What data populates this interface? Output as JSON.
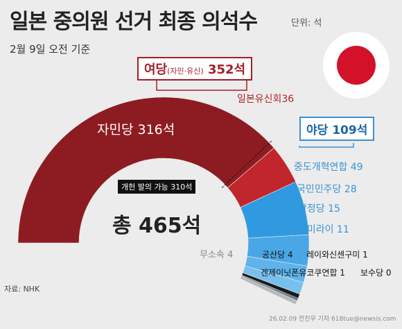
{
  "title": "일본 중의원 선거 최종 의석수",
  "unit": "단위: 석",
  "subtitle": "2월 9일 오전 기준",
  "source": "자료: NHK",
  "footer": "26.02.09 전진우 기자 618tue@newsis.com",
  "ruling_bloc": {
    "label": "여당",
    "members": "(자민·유신)",
    "seats": "352석"
  },
  "opposition_bloc": {
    "label": "야당",
    "seats": "109석"
  },
  "threshold_label": "개헌 발의 가능 310석",
  "total_label": "총 465석",
  "colors": {
    "ldp": "#8d1c22",
    "ishin": "#c2262d",
    "cdp": "#2f9adf",
    "dpfp": "#4aa7e5",
    "sanseito": "#5fb3ea",
    "mirai": "#77c0ee",
    "jcp": "#1a1a1a",
    "minor": "#1c3c6a",
    "genzei": "#0d2244",
    "sanshu": "#2b2b2b",
    "genzei_hoshu": "#0b1b33",
    "independent": "#b9b9b9"
  },
  "chart_data": {
    "type": "pie",
    "title": "일본 중의원 선거 최종 의석수",
    "total": 465,
    "slices": [
      {
        "name": "자민당",
        "label": "자민당 316석",
        "value": 316
      },
      {
        "name": "일본유신회",
        "label": "일본유신회36",
        "value": 36
      },
      {
        "name": "중도개혁연합",
        "label": "중도개혁연합 49",
        "value": 49
      },
      {
        "name": "국민민주당",
        "label": "국민민주당 28",
        "value": 28
      },
      {
        "name": "참정당",
        "label": "참정당 15",
        "value": 15
      },
      {
        "name": "팀미라이",
        "label": "팀미라이 11",
        "value": 11
      },
      {
        "name": "공산당",
        "label": "공산당 4",
        "value": 4
      },
      {
        "name": "레이와신센구미",
        "label": "레이와신센구미 1",
        "value": 1
      },
      {
        "name": "겐제이닛폰유코쿠연합",
        "label": "겐제이닛폰유코쿠연합 1",
        "value": 1
      },
      {
        "name": "보수당",
        "label": "보수당 0",
        "value": 0
      },
      {
        "name": "무소속",
        "label": "무소속 4",
        "value": 4
      }
    ],
    "threshold": 310
  }
}
